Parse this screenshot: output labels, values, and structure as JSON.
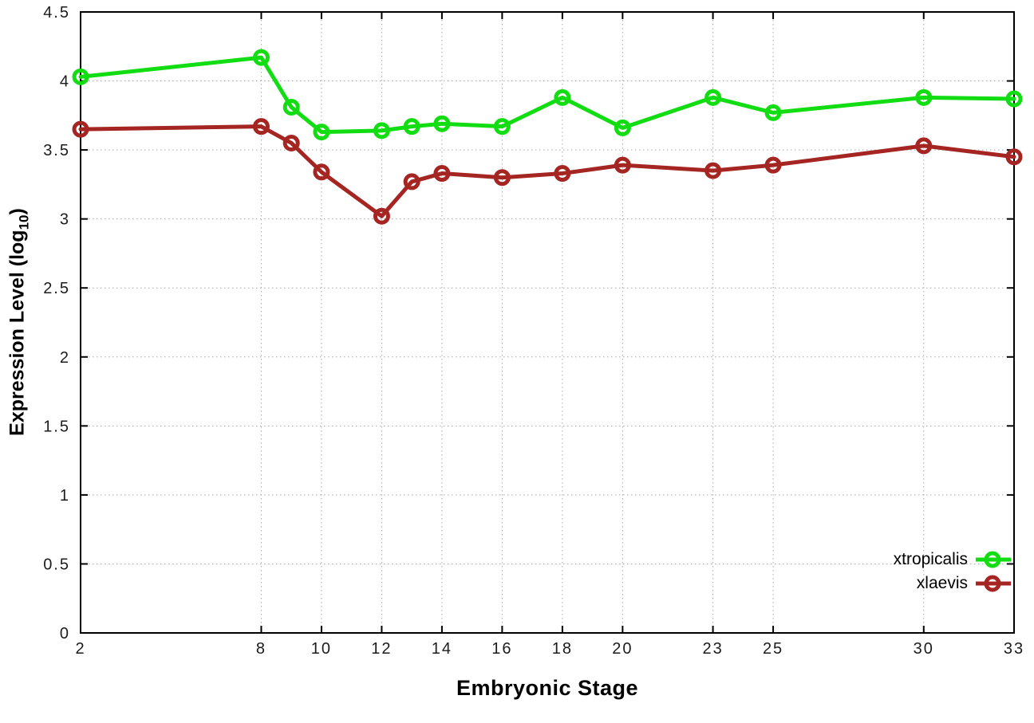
{
  "chart_data": {
    "type": "line",
    "title": "",
    "xlabel": "Embryonic Stage",
    "ylabel": "Expression Level (log10)",
    "ylabel_parts": {
      "main": "Expression Level (log",
      "sub": "10",
      "close": ")"
    },
    "x": [
      2,
      8,
      9,
      10,
      12,
      13,
      14,
      16,
      18,
      20,
      23,
      25,
      30,
      33
    ],
    "series": [
      {
        "name": "xtropicalis",
        "color": "#12dd12",
        "values": [
          4.03,
          4.17,
          3.81,
          3.63,
          3.64,
          3.67,
          3.69,
          3.67,
          3.88,
          3.66,
          3.88,
          3.77,
          3.88,
          3.87
        ]
      },
      {
        "name": "xlaevis",
        "color": "#a52522",
        "values": [
          3.65,
          3.67,
          3.55,
          3.34,
          3.02,
          3.27,
          3.33,
          3.3,
          3.33,
          3.39,
          3.35,
          3.39,
          3.53,
          3.45
        ]
      }
    ],
    "xticks": [
      2,
      8,
      10,
      12,
      14,
      16,
      18,
      20,
      23,
      25,
      30,
      33
    ],
    "yticks": [
      0,
      0.5,
      1,
      1.5,
      2,
      2.5,
      3,
      3.5,
      4,
      4.5
    ],
    "xlim": [
      2,
      33
    ],
    "ylim": [
      0,
      4.5
    ],
    "grid": true,
    "legend_position": "bottom-right",
    "colors": {
      "grid": "#a8a8a8",
      "axis": "#000000",
      "tick_label": "#1c1c1c",
      "background": "#ffffff"
    }
  }
}
